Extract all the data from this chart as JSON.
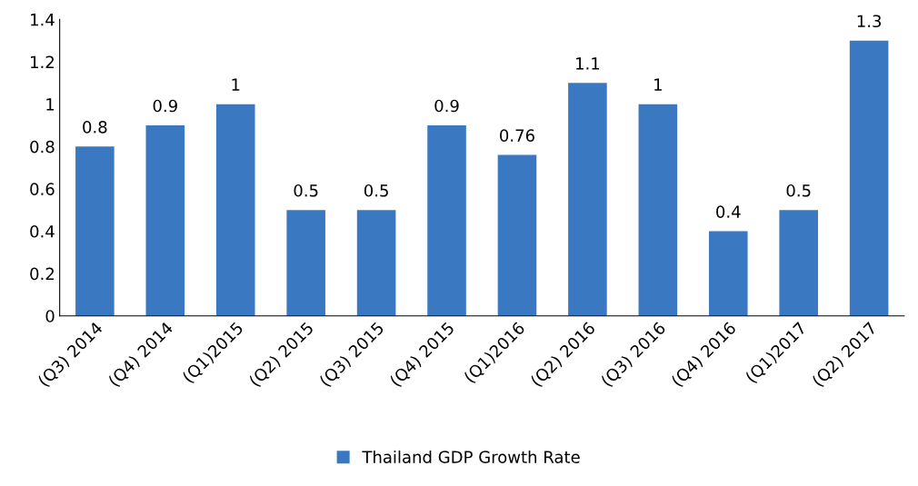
{
  "chart_data": {
    "type": "bar",
    "categories": [
      "(Q3) 2014",
      "(Q4) 2014",
      "(Q1)2015",
      "(Q2) 2015",
      "(Q3) 2015",
      "(Q4) 2015",
      "(Q1)2016",
      "(Q2) 2016",
      "(Q3) 2016",
      "(Q4) 2016",
      "(Q1)2017",
      "(Q2) 2017"
    ],
    "series": [
      {
        "name": "Thailand GDP Growth Rate",
        "color": "#3b78c2",
        "values": [
          0.8,
          0.9,
          1,
          0.5,
          0.5,
          0.9,
          0.76,
          1.1,
          1,
          0.4,
          0.5,
          1.3
        ]
      }
    ],
    "ylim": [
      0,
      1.4
    ],
    "yticks": [
      0,
      0.2,
      0.4,
      0.6,
      0.8,
      1,
      1.2,
      1.4
    ],
    "data_labels": true,
    "grid": false,
    "legend": "bottom"
  }
}
